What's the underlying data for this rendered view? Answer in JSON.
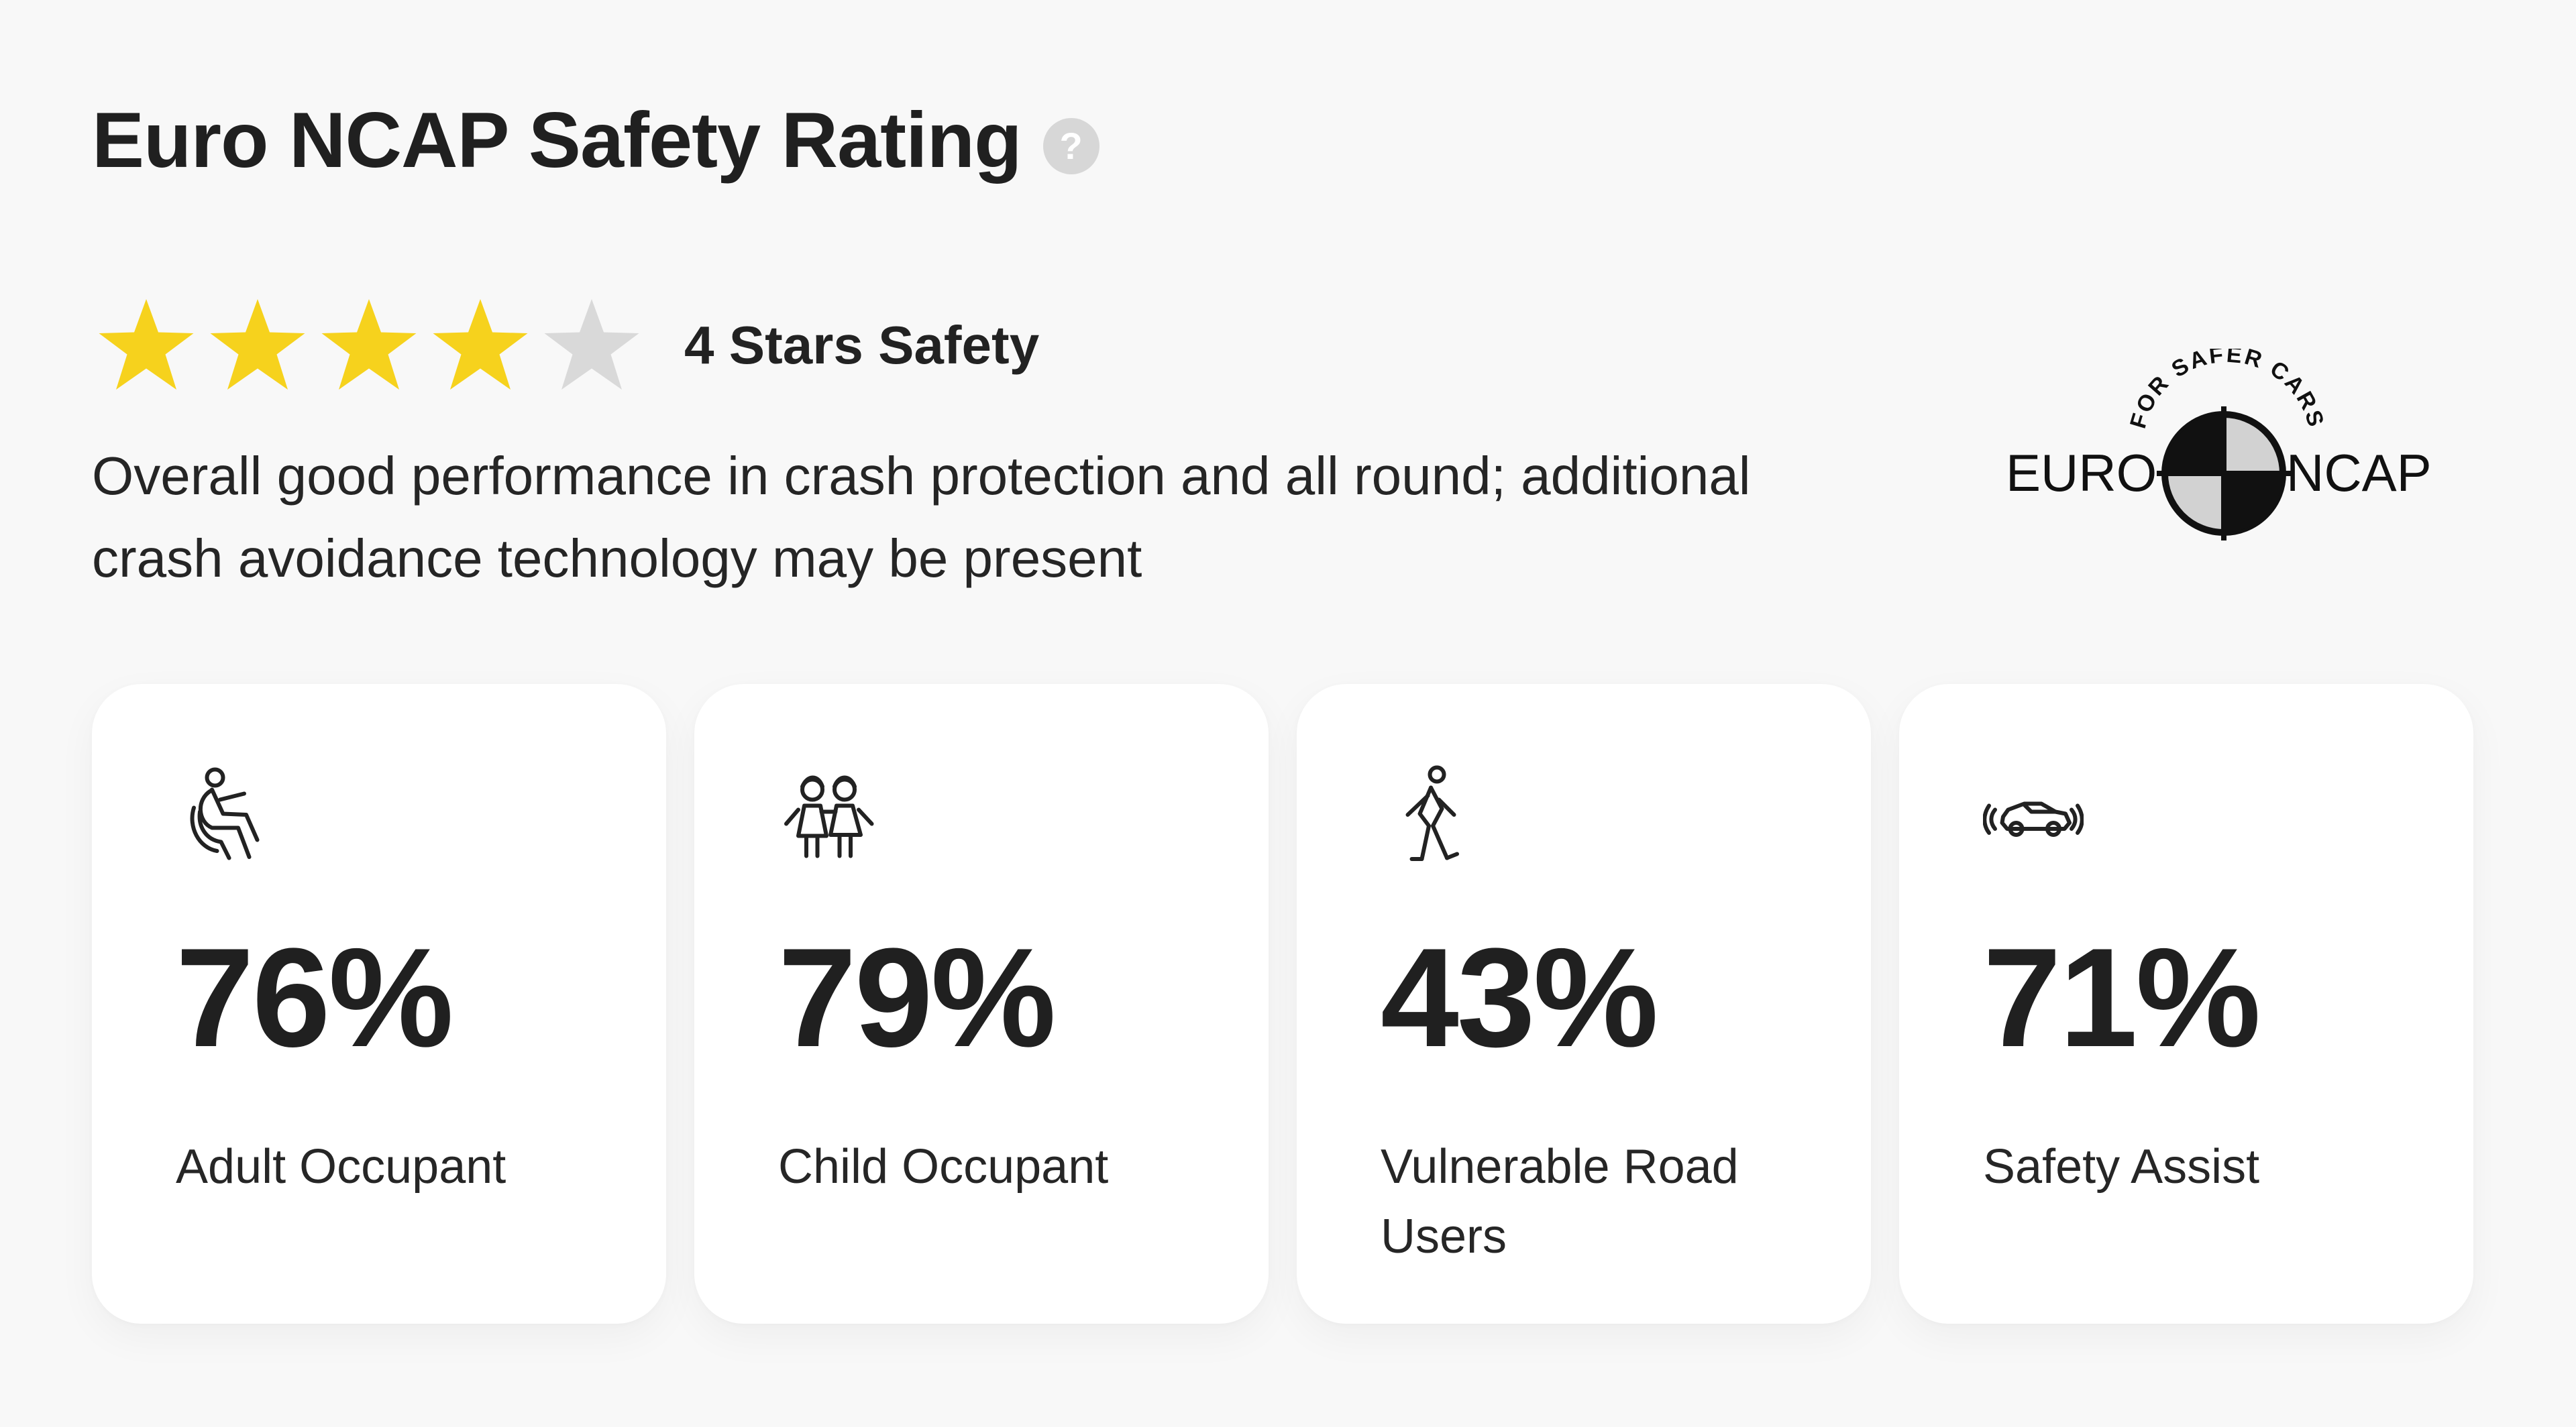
{
  "header": {
    "title": "Euro NCAP Safety Rating",
    "help_icon": "?"
  },
  "rating": {
    "stars_total": 5,
    "stars_filled": 4,
    "label": "4 Stars Safety",
    "star_colors": {
      "filled": "#f6d21d",
      "empty": "#d9d9d9"
    }
  },
  "description": "Overall good performance in crash protection and all round; additional crash avoidance technology may be present",
  "logo": {
    "text_top": "FOR SAFER CARS",
    "text_left": "EURO",
    "text_right": "NCAP"
  },
  "cards": [
    {
      "icon": "seated-person-icon",
      "value": "76%",
      "label": "Adult Occupant"
    },
    {
      "icon": "children-icon",
      "value": "79%",
      "label": "Child Occupant"
    },
    {
      "icon": "walking-person-icon",
      "value": "43%",
      "label": "Vulnerable Road Users"
    },
    {
      "icon": "car-sensor-icon",
      "value": "71%",
      "label": "Safety Assist"
    }
  ]
}
